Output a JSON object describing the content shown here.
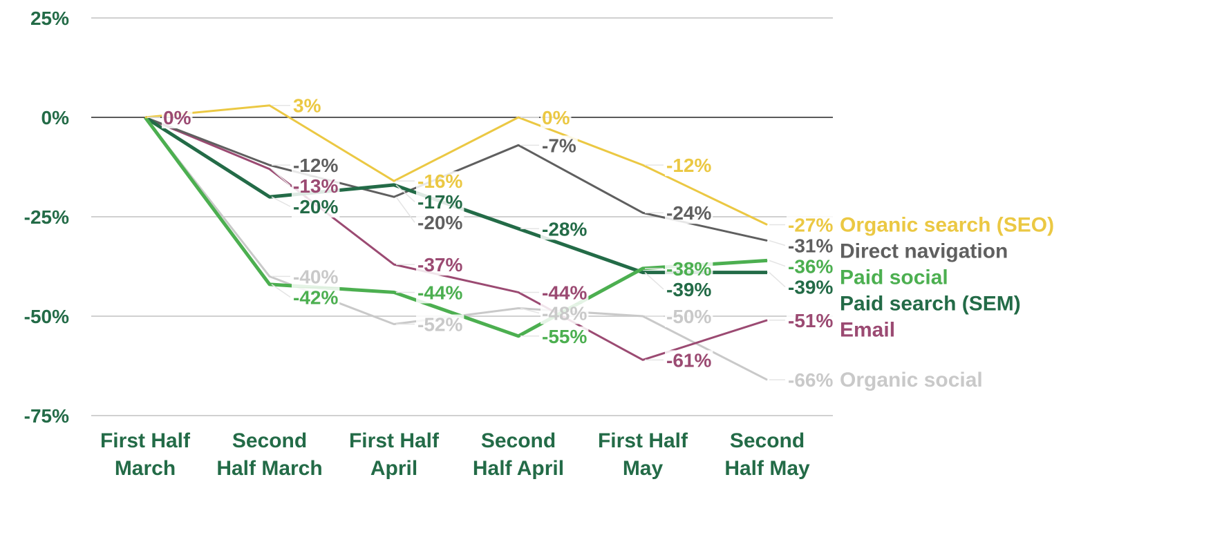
{
  "chart_data": {
    "type": "line",
    "title": "",
    "xlabel": "",
    "ylabel": "",
    "ylim": [
      -75,
      25
    ],
    "yticks": [
      25,
      0,
      -25,
      -50,
      -75
    ],
    "ytick_labels": [
      "25%",
      "0%",
      "-25%",
      "-50%",
      "-75%"
    ],
    "grid": true,
    "legend_placement": "right (inline at series end)",
    "categories": [
      [
        "First Half",
        "March"
      ],
      [
        "Second",
        "Half March"
      ],
      [
        "First Half",
        "April"
      ],
      [
        "Second",
        "Half April"
      ],
      [
        "First Half",
        "May"
      ],
      [
        "Second",
        "Half May"
      ]
    ],
    "series": [
      {
        "name": "Organic social",
        "color": "#C9C9C9",
        "width": 3,
        "values": [
          0,
          -40,
          -52,
          -48,
          -50,
          -66
        ],
        "labels": [
          null,
          "-40%",
          "-52%",
          "-48%",
          "-50%",
          "-66%"
        ]
      },
      {
        "name": "Email",
        "color": "#9B4A72",
        "width": 3,
        "values": [
          0,
          -13,
          -37,
          -44,
          -61,
          -51
        ],
        "labels": [
          "0%",
          "-13%",
          "-37%",
          "-44%",
          "-61%",
          "-51%"
        ]
      },
      {
        "name": "Direct navigation",
        "color": "#5F5F5F",
        "width": 3,
        "values": [
          0,
          -12,
          -20,
          -7,
          -24,
          -31
        ],
        "labels": [
          null,
          "-12%",
          "-20%",
          "-7%",
          "-24%",
          "-31%"
        ]
      },
      {
        "name": "Paid search (SEM)",
        "color": "#236B47",
        "width": 5,
        "values": [
          0,
          -20,
          -17,
          -28,
          -39,
          -39
        ],
        "labels": [
          null,
          "-20%",
          "-17%",
          "-28%",
          "-39%",
          "-39%"
        ]
      },
      {
        "name": "Paid social",
        "color": "#4CAF50",
        "width": 5,
        "values": [
          0,
          -42,
          -44,
          -55,
          -38,
          -36
        ],
        "labels": [
          null,
          "-42%",
          "-44%",
          "-55%",
          "-38%",
          "-36%"
        ]
      },
      {
        "name": "Organic search (SEO)",
        "color": "#EBC843",
        "width": 3,
        "values": [
          0,
          3,
          -16,
          0,
          -12,
          -27
        ],
        "labels": [
          null,
          "3%",
          "-16%",
          "0%",
          "-12%",
          "-27%"
        ]
      }
    ],
    "axis_text_color": "#236B47"
  }
}
